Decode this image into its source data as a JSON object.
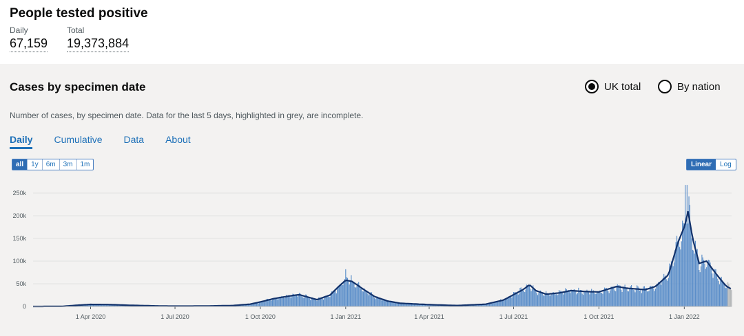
{
  "header": {
    "title": "People tested positive",
    "daily_label": "Daily",
    "daily_value": "67,159",
    "total_label": "Total",
    "total_value": "19,373,884"
  },
  "card": {
    "title": "Cases by specimen date",
    "radio_uk": "UK total",
    "radio_nation": "By nation",
    "selected_radio": "UK total",
    "description": "Number of cases, by specimen date. Data for the last 5 days, highlighted in grey, are incomplete.",
    "tabs": [
      "Daily",
      "Cumulative",
      "Data",
      "About"
    ],
    "active_tab": "Daily",
    "range_buttons": [
      "all",
      "1y",
      "6m",
      "3m",
      "1m"
    ],
    "active_range": "all",
    "scale_buttons": [
      "Linear",
      "Log"
    ],
    "active_scale": "Linear"
  },
  "colors": {
    "bar": "#5b8ec9",
    "line": "#12326b",
    "incomplete": "#b1b4b6",
    "accent": "#1d70b8"
  },
  "chart_data": {
    "type": "bar",
    "ylim": [
      0,
      250000
    ],
    "yticks": [
      0,
      50000,
      100000,
      150000,
      200000,
      250000
    ],
    "ytick_labels": [
      "0",
      "50k",
      "100k",
      "150k",
      "200k",
      "250k"
    ],
    "xtick_labels": [
      "1 Apr 2020",
      "1 Jul 2020",
      "1 Oct 2020",
      "1 Jan 2021",
      "1 Apr 2021",
      "1 Jul 2021",
      "1 Oct 2021",
      "1 Jan 2022"
    ],
    "xtick_dates": [
      "2020-04-01",
      "2020-07-01",
      "2020-10-01",
      "2021-01-01",
      "2021-04-01",
      "2021-07-01",
      "2021-10-01",
      "2022-01-01"
    ],
    "date_range": [
      "2020-01-30",
      "2022-02-21"
    ],
    "series": [
      {
        "values_type": "7-day rolling average",
        "points": [
          [
            "2020-01-30",
            0
          ],
          [
            "2020-03-01",
            200
          ],
          [
            "2020-03-20",
            3000
          ],
          [
            "2020-04-01",
            4500
          ],
          [
            "2020-04-20",
            4200
          ],
          [
            "2020-05-15",
            2500
          ],
          [
            "2020-06-15",
            1000
          ],
          [
            "2020-07-01",
            700
          ],
          [
            "2020-08-01",
            900
          ],
          [
            "2020-09-01",
            2000
          ],
          [
            "2020-09-20",
            5000
          ],
          [
            "2020-10-01",
            10000
          ],
          [
            "2020-10-15",
            17000
          ],
          [
            "2020-11-01",
            23000
          ],
          [
            "2020-11-12",
            26000
          ],
          [
            "2020-12-01",
            15000
          ],
          [
            "2020-12-15",
            25000
          ],
          [
            "2020-12-25",
            45000
          ],
          [
            "2021-01-01",
            58000
          ],
          [
            "2021-01-08",
            55000
          ],
          [
            "2021-01-20",
            38000
          ],
          [
            "2021-02-01",
            22000
          ],
          [
            "2021-02-15",
            12000
          ],
          [
            "2021-03-01",
            7000
          ],
          [
            "2021-04-01",
            4000
          ],
          [
            "2021-05-01",
            2000
          ],
          [
            "2021-06-01",
            5000
          ],
          [
            "2021-06-20",
            14000
          ],
          [
            "2021-07-01",
            26000
          ],
          [
            "2021-07-12",
            38000
          ],
          [
            "2021-07-18",
            48000
          ],
          [
            "2021-07-25",
            35000
          ],
          [
            "2021-08-05",
            27000
          ],
          [
            "2021-08-20",
            30000
          ],
          [
            "2021-09-01",
            35000
          ],
          [
            "2021-09-15",
            33000
          ],
          [
            "2021-10-01",
            32000
          ],
          [
            "2021-10-20",
            44000
          ],
          [
            "2021-11-01",
            40000
          ],
          [
            "2021-11-20",
            37000
          ],
          [
            "2021-12-01",
            44000
          ],
          [
            "2021-12-15",
            70000
          ],
          [
            "2021-12-25",
            140000
          ],
          [
            "2022-01-02",
            180000
          ],
          [
            "2022-01-05",
            210000
          ],
          [
            "2022-01-10",
            150000
          ],
          [
            "2022-01-17",
            95000
          ],
          [
            "2022-01-25",
            100000
          ],
          [
            "2022-02-05",
            70000
          ],
          [
            "2022-02-15",
            45000
          ],
          [
            "2022-02-21",
            38000
          ]
        ]
      }
    ]
  }
}
